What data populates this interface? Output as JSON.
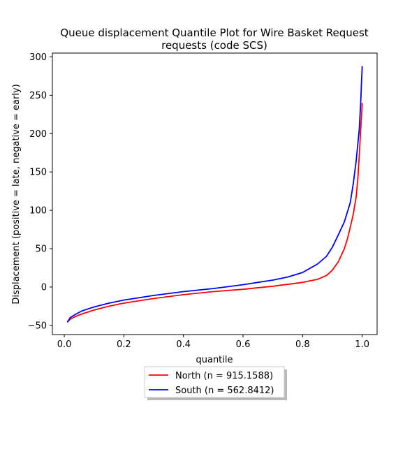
{
  "chart_data": {
    "type": "line",
    "title_line1": "Queue displacement Quantile Plot for Wire Basket Request",
    "title_line2": "requests (code SCS)",
    "xlabel": "quantile",
    "ylabel": "Displacement (positive = late, negative = early)",
    "xlim": [
      -0.04,
      1.05
    ],
    "ylim": [
      -62,
      305
    ],
    "xticks": [
      0.0,
      0.2,
      0.4,
      0.6,
      0.8,
      1.0
    ],
    "xtick_labels": [
      "0.0",
      "0.2",
      "0.4",
      "0.6",
      "0.8",
      "1.0"
    ],
    "yticks": [
      -50,
      0,
      50,
      100,
      150,
      200,
      250,
      300
    ],
    "ytick_labels": [
      "−50",
      "0",
      "50",
      "100",
      "150",
      "200",
      "250",
      "300"
    ],
    "grid": false,
    "legend_position": "below",
    "series": [
      {
        "name": "North (n = 915.1588)",
        "color": "#ff0000",
        "x": [
          0.01,
          0.02,
          0.04,
          0.06,
          0.1,
          0.15,
          0.2,
          0.3,
          0.4,
          0.5,
          0.6,
          0.7,
          0.8,
          0.85,
          0.88,
          0.9,
          0.92,
          0.94,
          0.95,
          0.96,
          0.97,
          0.98,
          0.985,
          0.99,
          0.995,
          0.998,
          1.0
        ],
        "y": [
          -46,
          -42,
          -38,
          -35,
          -30,
          -25,
          -21,
          -15,
          -10,
          -6,
          -3,
          1,
          6,
          10,
          15,
          22,
          33,
          50,
          62,
          78,
          95,
          118,
          140,
          170,
          205,
          225,
          240
        ]
      },
      {
        "name": "South (n = 562.8412)",
        "color": "#0000ff",
        "x": [
          0.01,
          0.02,
          0.04,
          0.06,
          0.1,
          0.15,
          0.2,
          0.3,
          0.4,
          0.5,
          0.6,
          0.7,
          0.75,
          0.8,
          0.85,
          0.88,
          0.9,
          0.92,
          0.94,
          0.96,
          0.97,
          0.98,
          0.99,
          0.995,
          0.998,
          1.0
        ],
        "y": [
          -46,
          -40,
          -35,
          -31,
          -26,
          -21,
          -17,
          -11,
          -6,
          -2,
          3,
          9,
          13,
          19,
          30,
          40,
          52,
          68,
          85,
          110,
          135,
          165,
          205,
          240,
          270,
          288
        ]
      }
    ]
  }
}
